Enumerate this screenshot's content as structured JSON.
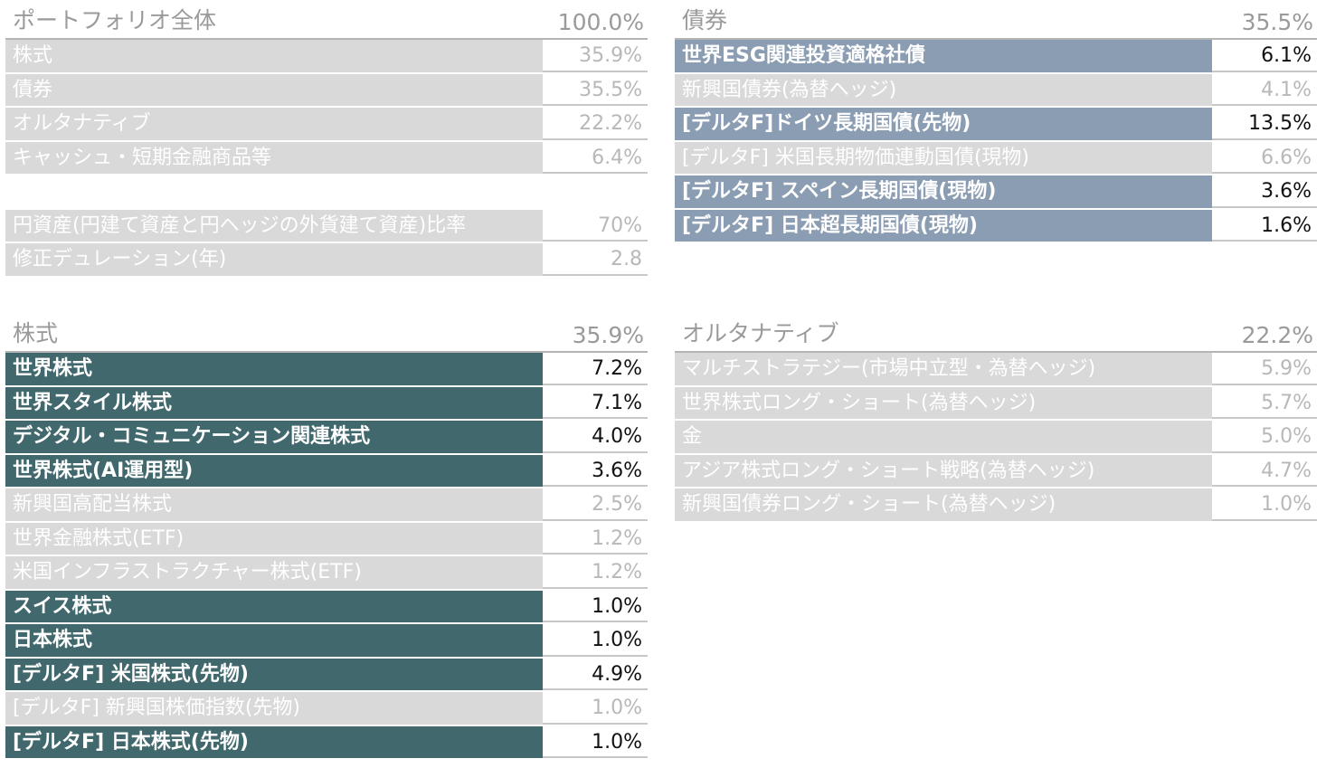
{
  "portfolio": {
    "title": "ポートフォリオ全体",
    "total": "100.0%",
    "rows": [
      {
        "label": "株式",
        "value": "35.9%"
      },
      {
        "label": "債券",
        "value": "35.5%"
      },
      {
        "label": "オルタナティブ",
        "value": "22.2%"
      },
      {
        "label": "キャッシュ・短期金融商品等",
        "value": "6.4%"
      }
    ],
    "metrics": [
      {
        "label": "円資産(円建て資産と円ヘッジの外貨建て資産)比率",
        "value": "70%"
      },
      {
        "label": "修正デュレーション(年)",
        "value": "2.8"
      }
    ]
  },
  "bonds": {
    "title": "債券",
    "total": "35.5%",
    "rows": [
      {
        "label": "世界ESG関連投資適格社債",
        "value": "6.1%",
        "highlight": true
      },
      {
        "label": "新興国債券(為替ヘッジ)",
        "value": "4.1%",
        "highlight": false
      },
      {
        "label": "[デルタF]ドイツ長期国債(先物)",
        "value": "13.5%",
        "highlight": true
      },
      {
        "label": "[デルタF] 米国長期物価連動国債(現物)",
        "value": "6.6%",
        "highlight": false
      },
      {
        "label": "[デルタF] スペイン長期国債(現物)",
        "value": "3.6%",
        "highlight": true
      },
      {
        "label": "[デルタF] 日本超長期国債(現物)",
        "value": "1.6%",
        "highlight": true
      }
    ]
  },
  "equities": {
    "title": "株式",
    "total": "35.9%",
    "rows": [
      {
        "label": "世界株式",
        "value": "7.2%",
        "highlight": true
      },
      {
        "label": "世界スタイル株式",
        "value": "7.1%",
        "highlight": true
      },
      {
        "label": "デジタル・コミュニケーション関連株式",
        "value": "4.0%",
        "highlight": true
      },
      {
        "label": "世界株式(AI運用型)",
        "value": "3.6%",
        "highlight": true
      },
      {
        "label": "新興国高配当株式",
        "value": "2.5%",
        "highlight": false
      },
      {
        "label": "世界金融株式(ETF)",
        "value": "1.2%",
        "highlight": false
      },
      {
        "label": "米国インフラストラクチャー株式(ETF)",
        "value": "1.2%",
        "highlight": false
      },
      {
        "label": "スイス株式",
        "value": "1.0%",
        "highlight": true
      },
      {
        "label": "日本株式",
        "value": "1.0%",
        "highlight": true
      },
      {
        "label": "[デルタF] 米国株式(先物)",
        "value": "4.9%",
        "highlight": true
      },
      {
        "label": "[デルタF] 新興国株価指数(先物)",
        "value": "1.0%",
        "highlight": false
      },
      {
        "label": "[デルタF] 日本株式(先物)",
        "value": "1.0%",
        "highlight": true
      }
    ]
  },
  "alternatives": {
    "title": "オルタナティブ",
    "total": "22.2%",
    "rows": [
      {
        "label": "マルチストラテジー(市場中立型・為替ヘッジ)",
        "value": "5.9%",
        "highlight": false
      },
      {
        "label": "世界株式ロング・ショート(為替ヘッジ)",
        "value": "5.7%",
        "highlight": false
      },
      {
        "label": "金",
        "value": "5.0%",
        "highlight": false
      },
      {
        "label": "アジア株式ロング・ショート戦略(為替ヘッジ)",
        "value": "4.7%",
        "highlight": false
      },
      {
        "label": "新興国債券ロング・ショート(為替ヘッジ)",
        "value": "1.0%",
        "highlight": false
      }
    ]
  }
}
